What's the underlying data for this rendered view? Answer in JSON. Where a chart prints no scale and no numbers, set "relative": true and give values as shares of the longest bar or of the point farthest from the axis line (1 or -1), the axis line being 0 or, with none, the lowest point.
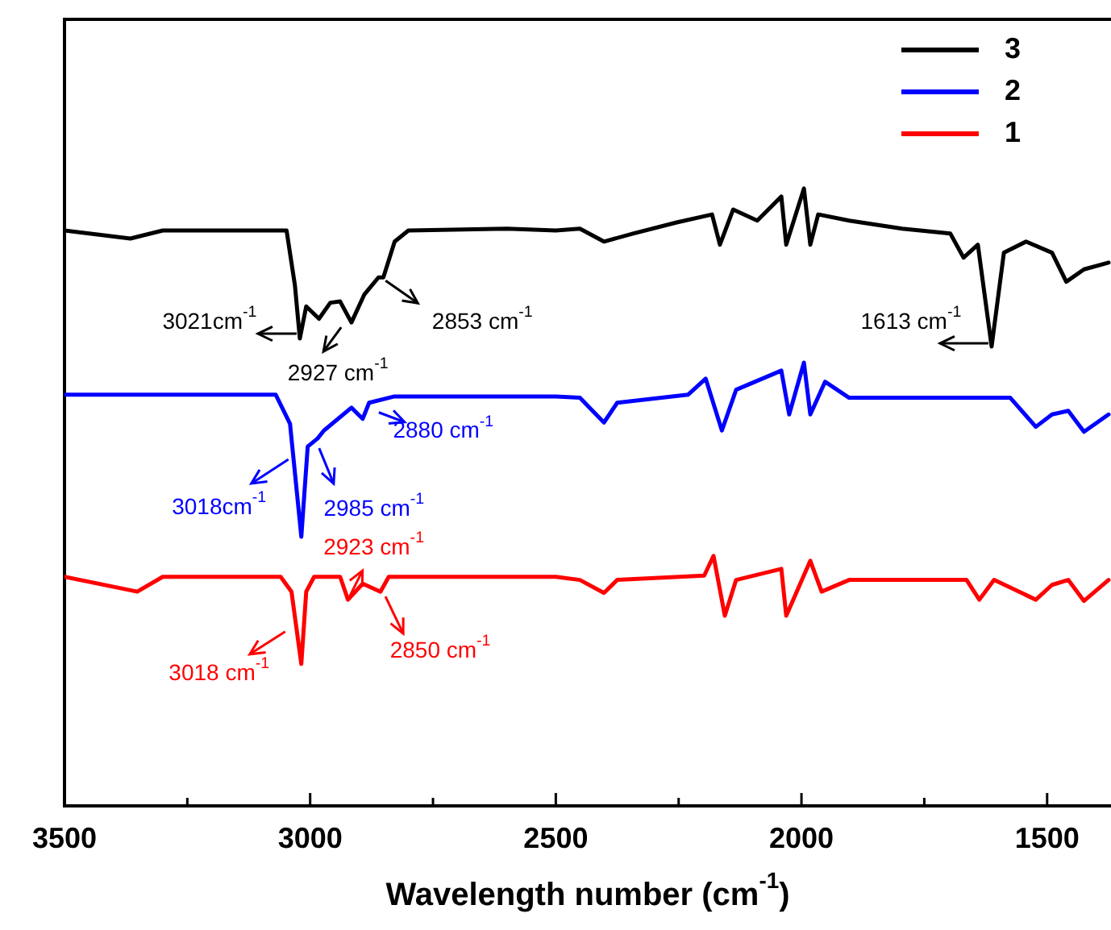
{
  "chart_data": {
    "type": "line",
    "xlabel": "Wavelength number (cm$^{-1}$)",
    "relative": true,
    "legend": "top right",
    "marker": "none",
    "line_style": "solid",
    "grid": false,
    "tick_labels": "x",
    "xlim": [
      3500,
      1370
    ],
    "xticks": [
      3500,
      {
        "value": 3250,
        "label": null
      },
      3000,
      {
        "value": 2750,
        "label": null
      },
      2500,
      {
        "value": 2250,
        "label": null
      },
      2000,
      {
        "value": 1750,
        "label": null
      },
      1500
    ],
    "series": [
      {
        "name": "3",
        "color": "#000000",
        "x": [
          3500,
          3366,
          3300,
          3100,
          3048,
          3031,
          3021,
          3008,
          2982,
          2959,
          2939,
          2916,
          2890,
          2861,
          2851,
          2828,
          2800,
          2600,
          2500,
          2451,
          2402,
          2343,
          2254,
          2182,
          2166,
          2139,
          2090,
          2041,
          2031,
          1995,
          1982,
          1966,
          1903,
          1795,
          1697,
          1670,
          1641,
          1613,
          1588,
          1543,
          1490,
          1461,
          1425,
          1375
        ],
        "values": [
          0.932,
          0.919,
          0.932,
          0.932,
          0.932,
          0.843,
          0.757,
          0.809,
          0.789,
          0.815,
          0.817,
          0.783,
          0.828,
          0.856,
          0.856,
          0.914,
          0.932,
          0.935,
          0.932,
          0.935,
          0.914,
          0.927,
          0.945,
          0.958,
          0.909,
          0.966,
          0.948,
          0.987,
          0.909,
          1.0,
          0.909,
          0.958,
          0.948,
          0.935,
          0.927,
          0.888,
          0.909,
          0.744,
          0.896,
          0.914,
          0.896,
          0.849,
          0.869,
          0.88
        ]
      },
      {
        "name": "2",
        "color": "#0000ff",
        "x": [
          3500,
          3300,
          3070,
          3041,
          3018,
          3005,
          2985,
          2972,
          2916,
          2893,
          2880,
          2830,
          2500,
          2451,
          2402,
          2375,
          2231,
          2195,
          2162,
          2133,
          2041,
          2025,
          1995,
          1982,
          1952,
          1903,
          1575,
          1523,
          1490,
          1457,
          1425,
          1375
        ],
        "values": [
          0.666,
          0.666,
          0.666,
          0.619,
          0.436,
          0.582,
          0.595,
          0.608,
          0.645,
          0.627,
          0.653,
          0.663,
          0.663,
          0.661,
          0.621,
          0.653,
          0.666,
          0.692,
          0.608,
          0.674,
          0.705,
          0.634,
          0.718,
          0.634,
          0.687,
          0.661,
          0.661,
          0.614,
          0.634,
          0.64,
          0.606,
          0.634
        ]
      },
      {
        "name": "1",
        "color": "#ff0000",
        "x": [
          3500,
          3352,
          3300,
          3060,
          3038,
          3018,
          3008,
          2992,
          2939,
          2923,
          2893,
          2857,
          2840,
          2500,
          2451,
          2402,
          2375,
          2198,
          2179,
          2156,
          2133,
          2041,
          2031,
          1982,
          1959,
          1903,
          1664,
          1638,
          1608,
          1523,
          1490,
          1457,
          1425,
          1375
        ],
        "values": [
          0.371,
          0.347,
          0.371,
          0.371,
          0.347,
          0.23,
          0.347,
          0.371,
          0.371,
          0.334,
          0.36,
          0.347,
          0.371,
          0.371,
          0.366,
          0.345,
          0.366,
          0.373,
          0.405,
          0.308,
          0.366,
          0.384,
          0.308,
          0.397,
          0.347,
          0.366,
          0.366,
          0.334,
          0.366,
          0.334,
          0.358,
          0.366,
          0.332,
          0.366
        ]
      }
    ],
    "annotations": [
      {
        "text": "3021cm$^{-1}$",
        "x": 3021,
        "y": 0.757
      },
      {
        "text": "2927 cm$^{-1}$",
        "x": 2927,
        "y": 0.783
      },
      {
        "text": "2853 cm$^{-1}$",
        "x": 2853,
        "y": 0.856
      },
      {
        "text": "1613 cm$^{-1}$",
        "x": 1613,
        "y": 0.744
      },
      {
        "text": "3018cm$^{-1}$",
        "x": 3018,
        "y": 0.436
      },
      {
        "text": "2985 cm$^{-1}$",
        "x": 2985,
        "y": 0.595
      },
      {
        "text": "2880 cm$^{-1}$",
        "x": 2880,
        "y": 0.653
      },
      {
        "text": "3018 cm$^{-1}$",
        "x": 3018,
        "y": 0.23
      },
      {
        "text": "2923 cm$^{-1}$",
        "x": 2923,
        "y": 0.334
      },
      {
        "text": "2850 cm$^{-1}$",
        "x": 2850,
        "y": 0.347
      }
    ]
  }
}
